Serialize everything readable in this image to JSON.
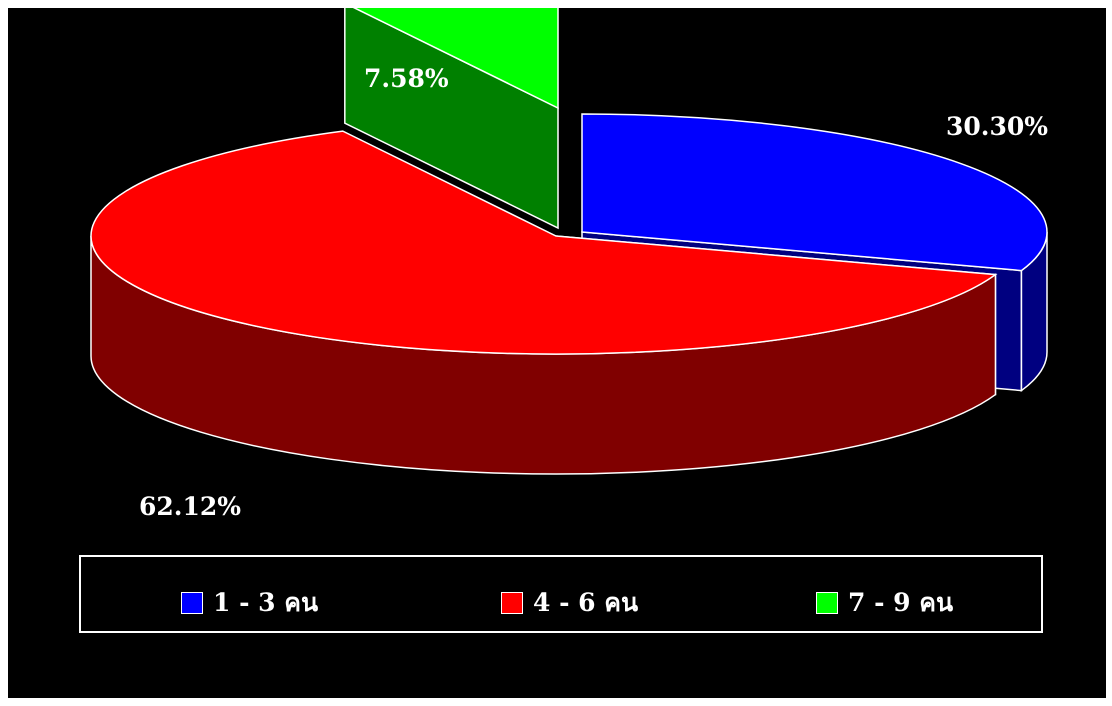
{
  "chart_data": {
    "type": "pie",
    "categories": [
      "1 - 3 คน",
      "4 - 6 คน",
      "7 -  9 คน"
    ],
    "values": [
      30.3,
      62.12,
      7.58
    ],
    "data_labels": [
      "30.30%",
      "62.12%",
      "7.58%"
    ],
    "colors": [
      "#0000FF",
      "#FF0000",
      "#00FF00"
    ],
    "side_colors": [
      "#000080",
      "#800000",
      "#008000"
    ],
    "legend_position": "bottom",
    "style": "3d-exploded"
  }
}
